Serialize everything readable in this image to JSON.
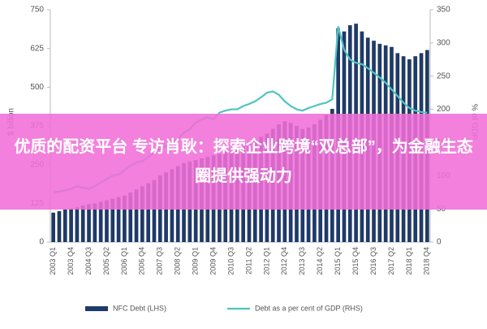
{
  "chart_data": {
    "type": "bar-line",
    "y_label": "$ billion",
    "y2_label": "% of GDP",
    "categories": [
      "2003 Q1",
      null,
      null,
      "2003 Q4",
      null,
      null,
      "2004 Q3",
      null,
      null,
      "2005 Q2",
      null,
      null,
      "2006 Q1",
      null,
      null,
      "2006 Q4",
      null,
      null,
      "2007 Q3",
      null,
      null,
      "2008 Q2",
      null,
      null,
      "2009 Q1",
      null,
      null,
      "2009 Q4",
      null,
      null,
      "2010 Q3",
      null,
      null,
      "2011 Q2",
      null,
      null,
      "2012 Q1",
      null,
      null,
      "2012 Q4",
      null,
      null,
      "2013 Q3",
      null,
      null,
      "2014 Q2",
      null,
      null,
      "2015 Q1",
      null,
      null,
      "2015 Q4",
      null,
      null,
      "2016 Q3",
      null,
      null,
      "2017 Q2",
      null,
      null,
      "2018 Q1",
      null,
      null,
      "2018 Q4"
    ],
    "series": [
      {
        "name": "NFC Debt (LHS)",
        "color": "#1f3a68",
        "kind": "bar",
        "values": [
          95,
          100,
          105,
          108,
          112,
          118,
          122,
          125,
          130,
          135,
          140,
          145,
          150,
          160,
          170,
          180,
          190,
          200,
          215,
          225,
          235,
          245,
          255,
          260,
          265,
          270,
          275,
          280,
          285,
          290,
          295,
          300,
          310,
          320,
          330,
          340,
          350,
          365,
          380,
          390,
          385,
          375,
          365,
          370,
          380,
          395,
          410,
          430,
          690,
          680,
          700,
          705,
          680,
          660,
          650,
          640,
          635,
          630,
          610,
          600,
          590,
          600,
          610,
          620
        ]
      },
      {
        "name": "Debt as a per cent of GDP (RHS)",
        "color": "#4fc4c2",
        "kind": "line",
        "axis": "y2",
        "values": [
          75,
          76,
          78,
          80,
          84,
          82,
          80,
          84,
          90,
          95,
          100,
          102,
          108,
          115,
          120,
          122,
          128,
          135,
          140,
          145,
          150,
          155,
          165,
          170,
          180,
          185,
          188,
          185,
          195,
          198,
          200,
          200,
          205,
          208,
          212,
          218,
          225,
          227,
          222,
          212,
          205,
          200,
          198,
          202,
          205,
          208,
          210,
          215,
          325,
          290,
          275,
          270,
          268,
          262,
          255,
          248,
          240,
          230,
          220,
          210,
          202,
          198,
          196,
          195
        ]
      }
    ],
    "ylim": [
      0,
      750
    ],
    "yticks": [
      0,
      125,
      250,
      375,
      500,
      625,
      750
    ],
    "y2lim": [
      0,
      350
    ],
    "y2ticks": [
      0,
      50,
      100,
      150,
      200,
      250,
      300,
      350
    ],
    "grid": false
  },
  "banner": "优质的配资平台 专访肖耿：探索企业跨境“双总部”，为金融生态圈提供强动力"
}
